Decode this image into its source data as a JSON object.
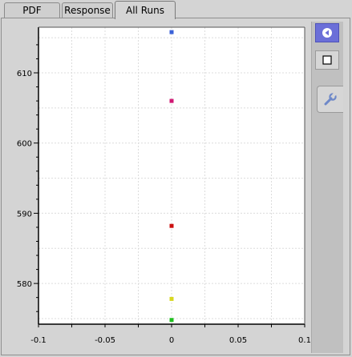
{
  "tabs": [
    {
      "label": "PDF",
      "active": false
    },
    {
      "label": "Response",
      "active": false
    },
    {
      "label": "All Runs",
      "active": true
    }
  ],
  "sidebar": {
    "buttons": [
      {
        "icon": "play-back-icon"
      },
      {
        "icon": "square-icon"
      }
    ],
    "tab": {
      "icon": "wrench-icon"
    }
  },
  "colors": {
    "accent": "#6b6fd8",
    "points": [
      "#3b62d8",
      "#d01873",
      "#cc1010",
      "#d8d820",
      "#20c020"
    ]
  },
  "chart_data": {
    "type": "scatter",
    "title": "",
    "xlabel": "",
    "ylabel": "",
    "xlim": [
      -0.1,
      0.1
    ],
    "ylim": [
      574.2,
      616.5
    ],
    "x_ticks": [
      "-0.1",
      "-0.05",
      "0",
      "0.05",
      "0.1"
    ],
    "x_tick_values": [
      -0.1,
      -0.05,
      0,
      0.05,
      0.1
    ],
    "y_ticks": [
      "610",
      "600",
      "590",
      "580"
    ],
    "y_tick_values": [
      610,
      600,
      590,
      580
    ],
    "grid": true,
    "points": [
      {
        "x": 0,
        "y": 615.8,
        "color": "#3b62d8"
      },
      {
        "x": 0,
        "y": 606.0,
        "color": "#d01873"
      },
      {
        "x": 0,
        "y": 588.2,
        "color": "#cc1010"
      },
      {
        "x": 0,
        "y": 577.8,
        "color": "#d8d820"
      },
      {
        "x": 0,
        "y": 574.8,
        "color": "#20c020"
      }
    ]
  }
}
